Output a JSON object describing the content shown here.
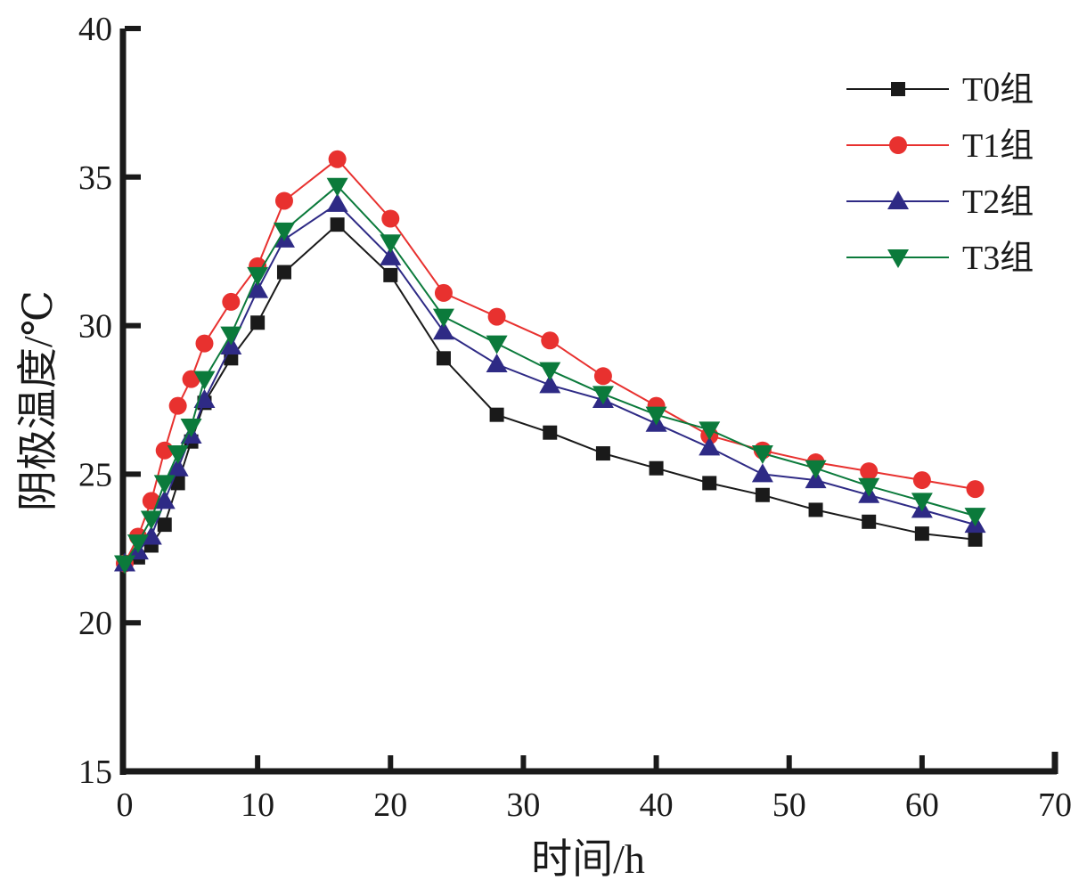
{
  "chart_data": {
    "type": "line",
    "title": "",
    "xlabel": "时间/h",
    "ylabel": "阴极温度/℃",
    "xlim": [
      0,
      70
    ],
    "ylim": [
      15,
      40
    ],
    "xticks": [
      0,
      10,
      20,
      30,
      40,
      50,
      60,
      70
    ],
    "yticks": [
      15,
      20,
      25,
      30,
      35,
      40
    ],
    "xtick_labels": [
      "0",
      "10",
      "20",
      "30",
      "40",
      "50",
      "60",
      "70"
    ],
    "ytick_labels": [
      "15",
      "20",
      "25",
      "30",
      "35",
      "40"
    ],
    "grid": false,
    "legend_position": "top-right",
    "x": [
      0,
      1,
      2,
      3,
      4,
      5,
      6,
      8,
      10,
      12,
      16,
      20,
      24,
      28,
      32,
      36,
      40,
      44,
      48,
      52,
      56,
      60,
      64
    ],
    "series": [
      {
        "name": "T0组",
        "color": "#1a1a1a",
        "marker": "square",
        "values": [
          22.0,
          22.2,
          22.6,
          23.3,
          24.7,
          26.1,
          27.4,
          28.9,
          30.1,
          31.8,
          33.4,
          31.7,
          28.9,
          27.0,
          26.4,
          25.7,
          25.2,
          24.7,
          24.3,
          23.8,
          23.4,
          23.0,
          22.8
        ]
      },
      {
        "name": "T1组",
        "color": "#e8312f",
        "marker": "circle",
        "values": [
          22.0,
          22.9,
          24.1,
          25.8,
          27.3,
          28.2,
          29.4,
          30.8,
          32.0,
          34.2,
          35.6,
          33.6,
          31.1,
          30.3,
          29.5,
          28.3,
          27.3,
          26.3,
          25.8,
          25.4,
          25.1,
          24.8,
          24.5
        ]
      },
      {
        "name": "T2组",
        "color": "#2e2a85",
        "marker": "triangle-up",
        "values": [
          22.0,
          22.4,
          22.9,
          24.1,
          25.2,
          26.3,
          27.5,
          29.3,
          31.2,
          32.9,
          34.1,
          32.3,
          29.8,
          28.7,
          28.0,
          27.5,
          26.7,
          25.9,
          25.0,
          24.8,
          24.3,
          23.8,
          23.3
        ]
      },
      {
        "name": "T3组",
        "color": "#0b7a3b",
        "marker": "triangle-down",
        "values": [
          22.0,
          22.7,
          23.5,
          24.7,
          25.7,
          26.6,
          28.2,
          29.7,
          31.7,
          33.2,
          34.7,
          32.8,
          30.3,
          29.4,
          28.5,
          27.7,
          27.0,
          26.5,
          25.7,
          25.2,
          24.6,
          24.1,
          23.6
        ]
      }
    ]
  }
}
